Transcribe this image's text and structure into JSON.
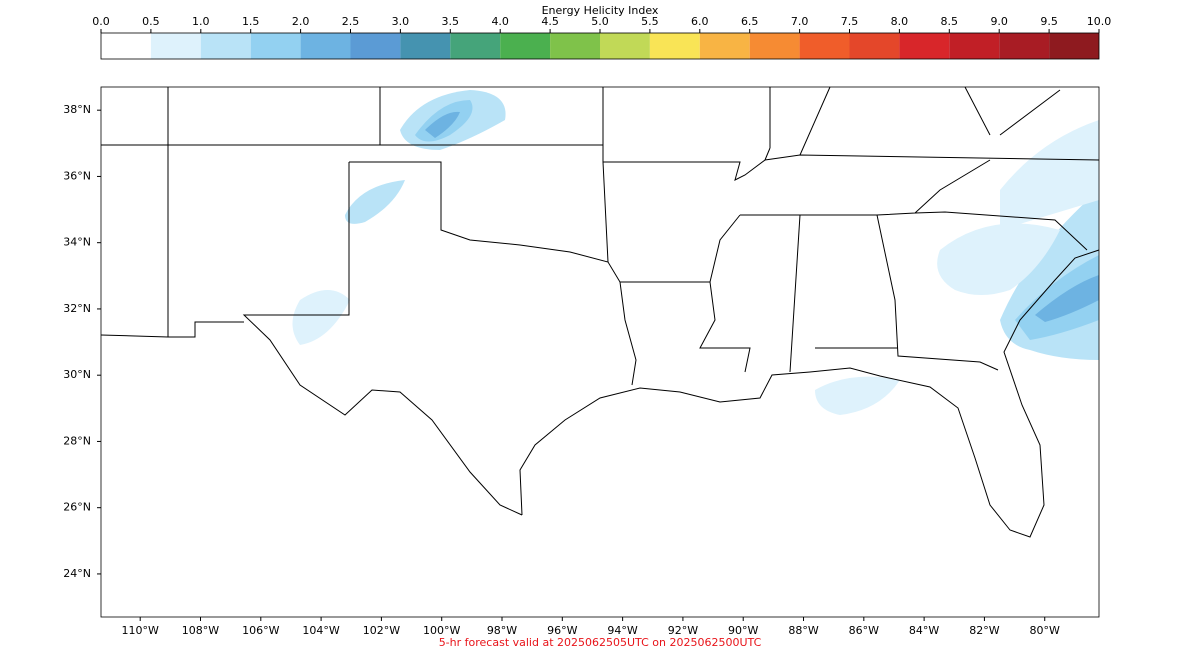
{
  "colorbar": {
    "title": "Energy Helicity Index",
    "ticks": [
      {
        "value": 0,
        "label": "0.0"
      },
      {
        "value": 0.5,
        "label": "0.5"
      },
      {
        "value": 1,
        "label": "1.0"
      },
      {
        "value": 1.5,
        "label": "1.5"
      },
      {
        "value": 2,
        "label": "2.0"
      },
      {
        "value": 2.5,
        "label": "2.5"
      },
      {
        "value": 3,
        "label": "3.0"
      },
      {
        "value": 3.5,
        "label": "3.5"
      },
      {
        "value": 4,
        "label": "4.0"
      },
      {
        "value": 4.5,
        "label": "4.5"
      },
      {
        "value": 5,
        "label": "5.0"
      },
      {
        "value": 5.5,
        "label": "5.5"
      },
      {
        "value": 6,
        "label": "6.0"
      },
      {
        "value": 6.5,
        "label": "6.5"
      },
      {
        "value": 7,
        "label": "7.0"
      },
      {
        "value": 7.5,
        "label": "7.5"
      },
      {
        "value": 8,
        "label": "8.0"
      },
      {
        "value": 8.5,
        "label": "8.5"
      },
      {
        "value": 9,
        "label": "9.0"
      },
      {
        "value": 9.5,
        "label": "9.5"
      },
      {
        "value": 10,
        "label": "10.0"
      }
    ],
    "colors": [
      "#ffffff",
      "#def2fc",
      "#b9e3f7",
      "#93d1f1",
      "#6db3e2",
      "#5b9bd5",
      "#4593b0",
      "#45a47a",
      "#4bb04f",
      "#7fc24a",
      "#c1d957",
      "#f9e456",
      "#f8b444",
      "#f68b33",
      "#f05d2a",
      "#e4472a",
      "#d8262a",
      "#c11f26",
      "#a81c24",
      "#8e1a1f"
    ]
  },
  "map": {
    "xlim": [
      -111.3,
      -78.2
    ],
    "ylim": [
      22.7,
      38.7
    ],
    "lat_ticks": [
      {
        "value": 38,
        "label": "38°N"
      },
      {
        "value": 36,
        "label": "36°N"
      },
      {
        "value": 34,
        "label": "34°N"
      },
      {
        "value": 32,
        "label": "32°N"
      },
      {
        "value": 30,
        "label": "30°N"
      },
      {
        "value": 28,
        "label": "28°N"
      },
      {
        "value": 26,
        "label": "26°N"
      },
      {
        "value": 24,
        "label": "24°N"
      }
    ],
    "lon_ticks": [
      {
        "value": -110,
        "label": "110°W"
      },
      {
        "value": -108,
        "label": "108°W"
      },
      {
        "value": -106,
        "label": "106°W"
      },
      {
        "value": -104,
        "label": "104°W"
      },
      {
        "value": -102,
        "label": "102°W"
      },
      {
        "value": -100,
        "label": "100°W"
      },
      {
        "value": -98,
        "label": "98°W"
      },
      {
        "value": -96,
        "label": "96°W"
      },
      {
        "value": -94,
        "label": "94°W"
      },
      {
        "value": -92,
        "label": "92°W"
      },
      {
        "value": -90,
        "label": "90°W"
      },
      {
        "value": -88,
        "label": "88°W"
      },
      {
        "value": -86,
        "label": "86°W"
      },
      {
        "value": -84,
        "label": "84°W"
      },
      {
        "value": -82,
        "label": "82°W"
      },
      {
        "value": -80,
        "label": "80°W"
      }
    ]
  },
  "footer": "5-hr forecast valid at 2025062505UTC on 2025062500UTC"
}
